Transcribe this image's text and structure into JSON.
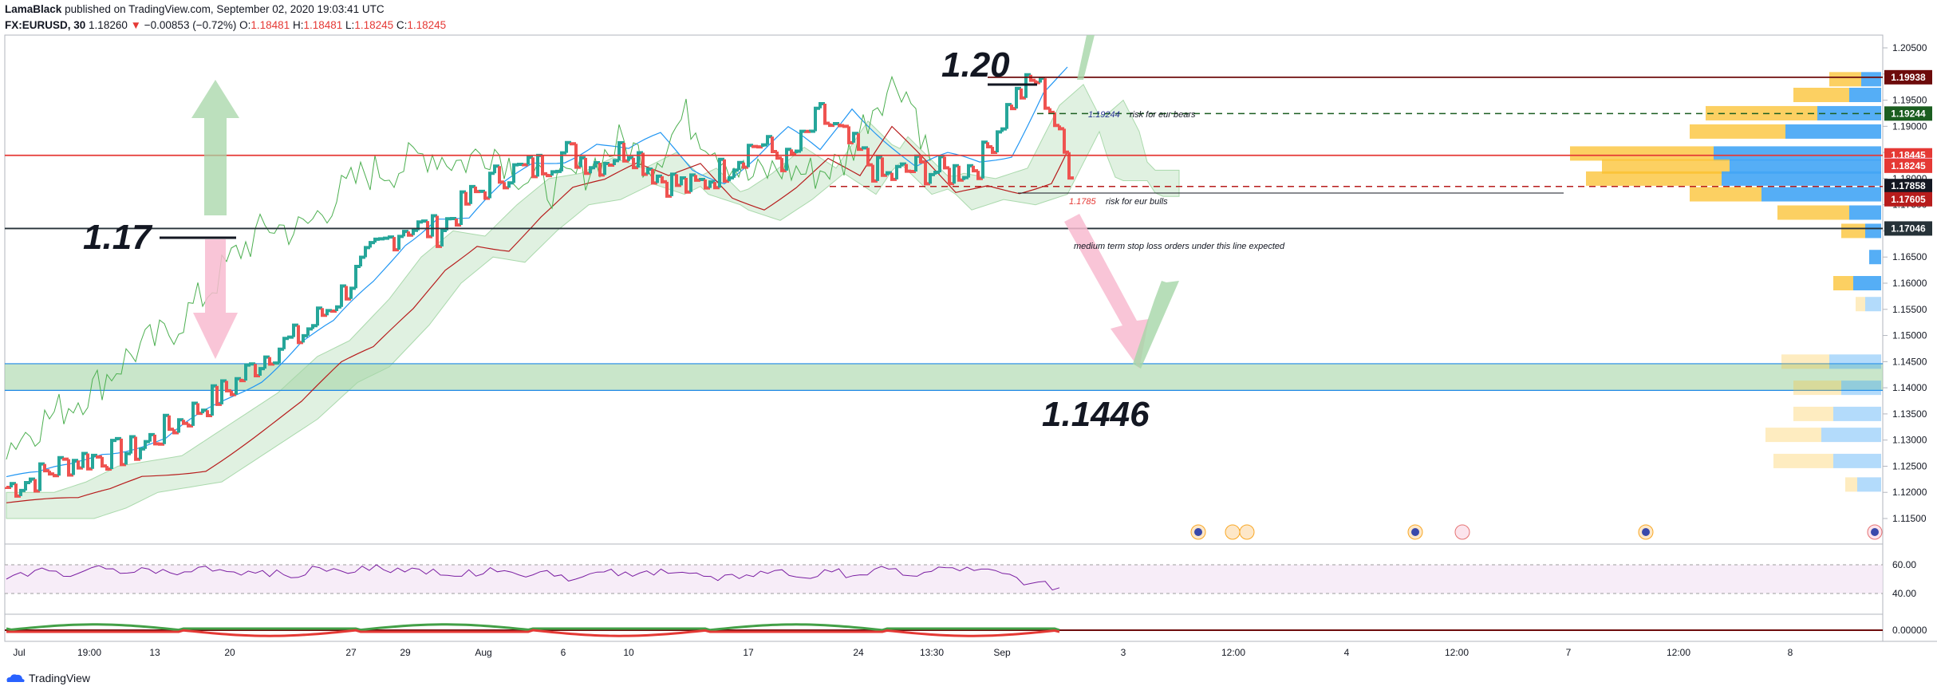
{
  "header": {
    "author": "LamaBlack",
    "published": "published on TradingView.com, September 02, 2020 19:03:41 UTC",
    "symbol": "FX:EURUSD, 30",
    "last": "1.18260",
    "change": "−0.00853 (−0.72%)",
    "o_label": "O:",
    "o": "1.18481",
    "h_label": "H:",
    "h": "1.18481",
    "l_label": "L:",
    "l": "1.18245",
    "c_label": "C:",
    "c": "1.18245"
  },
  "footer": {
    "brand": "TradingView"
  },
  "colors": {
    "up": "#26a69a",
    "down": "#ef5350",
    "tenkan": "#2196f3",
    "kijun": "#b71c1c",
    "chikou": "#4caf50",
    "cloud": "#c8e6c9",
    "support_zone": "#a5d6a7",
    "rsi": "#7b1fa2",
    "rsi_band": "#f3e5f5"
  },
  "chart_data": {
    "type": "line",
    "ylim": [
      1.115,
      1.205
    ],
    "y_ticks": [
      "1.20500",
      "1.20000",
      "1.19500",
      "1.19000",
      "1.18500",
      "1.18000",
      "1.17500",
      "1.17000",
      "1.16500",
      "1.16000",
      "1.15500",
      "1.15000",
      "1.14500",
      "1.14000",
      "1.13500",
      "1.13000",
      "1.12500",
      "1.12000",
      "1.11500"
    ],
    "x_ticks": [
      "Jul",
      "19:00",
      "13",
      "20",
      "27",
      "29",
      "Aug",
      "6",
      "10",
      "17",
      "24",
      "13:30",
      "Sep",
      "3",
      "12:00",
      "4",
      "12:00",
      "7",
      "12:00",
      "8"
    ],
    "price_labels": [
      {
        "text": "1.19938",
        "value": 1.19938,
        "color": "#6d0b0b"
      },
      {
        "text": "1.19244",
        "value": 1.19244,
        "color": "#1b5e20"
      },
      {
        "text": "1.18445",
        "value": 1.18445,
        "color": "#e53935"
      },
      {
        "text": "1.18260",
        "value": 1.1826,
        "color": "#f8bbd0"
      },
      {
        "text": "1.18245",
        "value": 1.18245,
        "color": "#e53935"
      },
      {
        "text": "1.17858",
        "value": 1.17858,
        "color": "#131722"
      },
      {
        "text": "1.17605",
        "value": 1.17605,
        "color": "#b71c1c"
      },
      {
        "text": "1.17046",
        "value": 1.17046,
        "color": "#263238"
      }
    ],
    "annotations": {
      "big_120": "1.20",
      "big_117": "1.17",
      "big_11446": "1.1446",
      "bears_value": "1.19244",
      "bears_text": "risk for eur bears",
      "bulls_value": "1.1785",
      "bulls_text": "risk for eur bulls",
      "stoploss": "medium term stop loss orders under this line expected"
    },
    "hlines": [
      {
        "name": "resistance-120",
        "value": 1.19938,
        "color": "#6d0b0b",
        "style": "solid"
      },
      {
        "name": "risk-bears",
        "value": 1.19244,
        "color": "#1b5e20",
        "style": "dashed"
      },
      {
        "name": "current-price",
        "value": 1.18445,
        "color": "#e53935",
        "style": "solid"
      },
      {
        "name": "risk-bulls",
        "value": 1.1785,
        "color": "#b71c1c",
        "style": "dashed"
      },
      {
        "name": "stoploss-line",
        "value": 1.17046,
        "color": "#263238",
        "style": "solid"
      }
    ],
    "zone": {
      "from": 1.1395,
      "to": 1.1446
    },
    "price_series": [
      [
        0,
        1.121
      ],
      [
        40,
        1.123
      ],
      [
        80,
        1.126
      ],
      [
        120,
        1.127
      ],
      [
        160,
        1.128
      ],
      [
        200,
        1.132
      ],
      [
        240,
        1.136
      ],
      [
        280,
        1.14
      ],
      [
        330,
        1.147
      ],
      [
        370,
        1.15
      ],
      [
        420,
        1.158
      ],
      [
        460,
        1.166
      ],
      [
        500,
        1.171
      ],
      [
        540,
        1.17
      ],
      [
        580,
        1.176
      ],
      [
        620,
        1.181
      ],
      [
        660,
        1.182
      ],
      [
        700,
        1.185
      ],
      [
        740,
        1.183
      ],
      [
        780,
        1.186
      ],
      [
        820,
        1.18
      ],
      [
        860,
        1.178
      ],
      [
        900,
        1.182
      ],
      [
        940,
        1.187
      ],
      [
        980,
        1.183
      ],
      [
        1020,
        1.192
      ],
      [
        1060,
        1.186
      ],
      [
        1100,
        1.18
      ],
      [
        1140,
        1.182
      ],
      [
        1180,
        1.181
      ],
      [
        1220,
        1.183
      ],
      [
        1260,
        1.195
      ],
      [
        1290,
        1.199
      ],
      [
        1310,
        1.193
      ],
      [
        1322,
        1.186
      ],
      [
        1332,
        1.1826
      ]
    ],
    "rsi": {
      "ticks": [
        "60.00",
        "40.00"
      ],
      "ylim": [
        30,
        70
      ],
      "values": [
        50,
        56,
        52,
        58,
        54,
        57,
        53,
        59,
        55,
        56,
        51,
        58,
        54,
        60,
        55,
        57,
        52,
        58,
        53,
        56,
        50,
        55,
        52,
        57,
        54,
        49,
        53,
        56,
        51,
        55,
        53,
        57,
        52,
        58,
        56,
        54,
        47,
        44
      ]
    },
    "oscillator_tick": "0.00000",
    "volume_profile": [
      {
        "y": 1.199,
        "blue": 25,
        "yellow": 40
      },
      {
        "y": 1.196,
        "blue": 40,
        "yellow": 70
      },
      {
        "y": 1.1925,
        "blue": 80,
        "yellow": 140
      },
      {
        "y": 1.189,
        "blue": 120,
        "yellow": 120
      },
      {
        "y": 1.1848,
        "blue": 210,
        "yellow": 180
      },
      {
        "y": 1.1823,
        "blue": 190,
        "yellow": 160
      },
      {
        "y": 1.18,
        "blue": 200,
        "yellow": 170
      },
      {
        "y": 1.177,
        "blue": 150,
        "yellow": 90
      },
      {
        "y": 1.1735,
        "blue": 40,
        "yellow": 90
      },
      {
        "y": 1.17,
        "blue": 20,
        "yellow": 30
      },
      {
        "y": 1.165,
        "blue": 15,
        "yellow": 0
      },
      {
        "y": 1.16,
        "blue": 35,
        "yellow": 25
      },
      {
        "y": 1.156,
        "blue": 20,
        "yellow": 12
      },
      {
        "y": 1.145,
        "blue": 65,
        "yellow": 60
      },
      {
        "y": 1.14,
        "blue": 50,
        "yellow": 60
      },
      {
        "y": 1.135,
        "blue": 60,
        "yellow": 50
      },
      {
        "y": 1.131,
        "blue": 75,
        "yellow": 70
      },
      {
        "y": 1.126,
        "blue": 60,
        "yellow": 75
      },
      {
        "y": 1.1215,
        "blue": 30,
        "yellow": 15
      }
    ]
  }
}
